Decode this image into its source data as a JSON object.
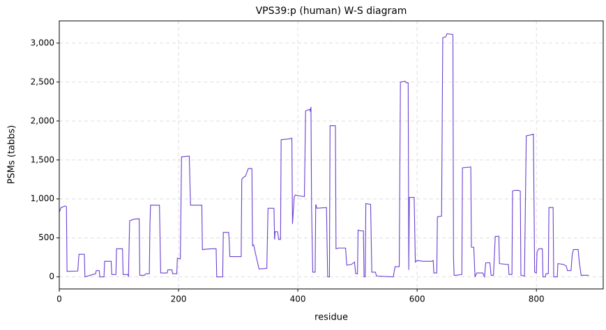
{
  "chart_data": {
    "type": "line",
    "title": "VPS39:p (human) W-S diagram",
    "x_label": "residue",
    "y_label": "PSMs (tabbs)",
    "xlim": [
      0,
      912
    ],
    "ylim": [
      -155,
      3285
    ],
    "xticks": [
      0,
      200,
      400,
      600,
      800
    ],
    "yticks": [
      0,
      500,
      {
        "value": 1000,
        "label": "1,000"
      },
      {
        "value": 1500,
        "label": "1,500"
      },
      {
        "value": 2000,
        "label": "2,000"
      },
      {
        "value": 2500,
        "label": "2,500"
      },
      {
        "value": 3000,
        "label": "3,000"
      }
    ],
    "grid": true,
    "series": [
      {
        "name": "VPS39",
        "color": "#6a3fd1",
        "x": [
          0,
          3,
          10,
          12,
          13,
          31,
          33,
          42,
          43,
          61,
          62,
          67,
          68,
          75,
          76,
          87,
          88,
          95,
          96,
          106,
          107,
          115,
          116,
          118,
          125,
          134,
          135,
          143,
          145,
          151,
          152,
          153,
          168,
          170,
          181,
          182,
          189,
          190,
          197,
          198,
          203,
          205,
          218,
          220,
          239,
          240,
          255,
          263,
          264,
          274,
          275,
          284,
          285,
          286,
          305,
          306,
          309,
          312,
          317,
          323,
          324,
          326,
          329,
          335,
          348,
          350,
          360,
          361,
          362,
          366,
          368,
          371,
          372,
          385,
          390,
          391,
          394,
          396,
          402,
          411,
          413,
          420,
          421,
          422,
          423,
          425,
          429,
          430,
          432,
          448,
          450,
          453,
          454,
          463,
          464,
          468,
          480,
          482,
          490,
          495,
          497,
          500,
          501,
          505,
          510,
          511,
          513,
          514,
          522,
          524,
          530,
          532,
          560,
          563,
          570,
          572,
          580,
          582,
          585,
          586,
          587,
          595,
          597,
          600,
          610,
          625,
          627,
          628,
          633,
          634,
          641,
          643,
          648,
          650,
          660,
          661,
          662,
          665,
          675,
          676,
          690,
          691,
          695,
          697,
          700,
          710,
          713,
          715,
          722,
          724,
          728,
          731,
          737,
          738,
          750,
          753,
          754,
          759,
          760,
          763,
          770,
          773,
          774,
          780,
          783,
          795,
          797,
          800,
          801,
          804,
          810,
          811,
          815,
          816,
          820,
          821,
          828,
          829,
          835,
          836,
          845,
          850,
          852,
          858,
          860,
          862,
          870,
          872,
          875,
          888
        ],
        "values": [
          830,
          890,
          910,
          900,
          70,
          75,
          290,
          290,
          0,
          40,
          80,
          80,
          0,
          0,
          200,
          200,
          30,
          30,
          360,
          360,
          30,
          30,
          0,
          720,
          740,
          745,
          20,
          20,
          40,
          40,
          660,
          920,
          920,
          50,
          50,
          90,
          90,
          40,
          40,
          240,
          230,
          1540,
          1550,
          920,
          920,
          350,
          360,
          360,
          0,
          0,
          570,
          570,
          450,
          260,
          260,
          1250,
          1280,
          1290,
          1390,
          1390,
          400,
          410,
          300,
          100,
          110,
          880,
          880,
          480,
          580,
          580,
          480,
          480,
          1760,
          1770,
          1780,
          680,
          1030,
          1050,
          1040,
          1030,
          2130,
          2150,
          2120,
          2180,
          900,
          60,
          60,
          930,
          880,
          890,
          0,
          0,
          1940,
          1940,
          360,
          370,
          370,
          150,
          160,
          190,
          40,
          40,
          600,
          590,
          590,
          0,
          0,
          940,
          930,
          60,
          60,
          10,
          0,
          130,
          130,
          2500,
          2510,
          2490,
          2490,
          90,
          1020,
          1020,
          190,
          210,
          200,
          200,
          210,
          50,
          50,
          770,
          780,
          3070,
          3080,
          3120,
          3110,
          240,
          20,
          20,
          30,
          1400,
          1410,
          380,
          380,
          0,
          50,
          50,
          0,
          180,
          180,
          20,
          20,
          520,
          520,
          170,
          160,
          160,
          30,
          30,
          1100,
          1110,
          1110,
          1100,
          20,
          10,
          1810,
          1830,
          60,
          50,
          320,
          360,
          360,
          0,
          0,
          40,
          40,
          890,
          890,
          0,
          0,
          170,
          160,
          140,
          80,
          80,
          280,
          350,
          350,
          180,
          20,
          20
        ]
      }
    ]
  }
}
